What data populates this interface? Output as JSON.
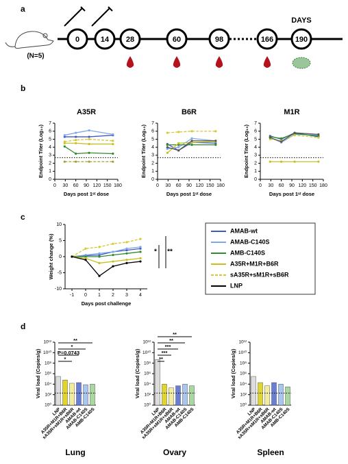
{
  "panel_labels": [
    "a",
    "b",
    "c",
    "d"
  ],
  "timeline": {
    "group": "(N=5)",
    "unit": "DAYS",
    "days": [
      "0",
      "14",
      "28",
      "60",
      "98",
      "166",
      "190"
    ]
  },
  "chart_data": [
    {
      "type": "line",
      "title": "A35R",
      "y_label": "Endpoint Titer (Log₁₀)",
      "x_label": "Days post 1ˢᵗ dose",
      "xlim": [
        0,
        180
      ],
      "xticks": [
        0,
        30,
        60,
        90,
        120,
        150,
        180
      ],
      "ylim": [
        0,
        7
      ],
      "yticks": [
        0,
        1,
        2,
        3,
        4,
        5,
        6,
        7
      ],
      "reference_line": 2.7,
      "x": [
        28,
        60,
        98,
        166
      ],
      "series": [
        {
          "color": "#3f57c6",
          "line_style": "solid",
          "values": [
            5.3,
            5.3,
            5.3,
            5.5
          ]
        },
        {
          "color": "#7fa6e6",
          "line_style": "solid",
          "values": [
            5.5,
            5.8,
            6.1,
            5.6
          ]
        },
        {
          "color": "#2e8b2e",
          "line_style": "solid",
          "values": [
            4.1,
            3.2,
            3.3,
            3.2
          ]
        },
        {
          "color": "#c8c020",
          "line_style": "solid",
          "values": [
            4.5,
            4.5,
            4.4,
            4.4
          ]
        },
        {
          "color": "#d6c832",
          "line_style": "dashed",
          "values": [
            4.7,
            4.9,
            5.0,
            4.8
          ]
        },
        {
          "color": "#a9a030",
          "line_style": "dashed",
          "values": [
            2.2,
            2.2,
            2.2,
            2.2
          ]
        }
      ]
    },
    {
      "type": "line",
      "title": "B6R",
      "y_label": "Endpoint Titer (Log₁₀)",
      "x_label": "Days post 1ˢᵗ dose",
      "xlim": [
        0,
        180
      ],
      "xticks": [
        0,
        30,
        60,
        90,
        120,
        150,
        180
      ],
      "ylim": [
        0,
        7
      ],
      "yticks": [
        0,
        1,
        2,
        3,
        4,
        5,
        6,
        7
      ],
      "reference_line": 2.7,
      "x": [
        28,
        60,
        98,
        166
      ],
      "series": [
        {
          "color": "#3f57c6",
          "line_style": "solid",
          "values": [
            4.4,
            3.6,
            4.6,
            4.5
          ]
        },
        {
          "color": "#7fa6e6",
          "line_style": "solid",
          "values": [
            3.8,
            4.0,
            5.1,
            4.8
          ]
        },
        {
          "color": "#2e8b2e",
          "line_style": "solid",
          "values": [
            4.3,
            4.3,
            4.3,
            4.3
          ]
        },
        {
          "color": "#c8c020",
          "line_style": "solid",
          "values": [
            3.3,
            4.5,
            4.6,
            4.7
          ]
        },
        {
          "color": "#d6c832",
          "line_style": "dashed",
          "values": [
            5.8,
            5.9,
            6.0,
            6.0
          ]
        },
        {
          "color": "#555555",
          "line_style": "solid",
          "values": [
            4.0,
            3.6,
            4.8,
            4.8
          ]
        }
      ]
    },
    {
      "type": "line",
      "title": "M1R",
      "y_label": "Endpoint Titer (Log₁₀)",
      "x_label": "Days post 1ˢᵗ dose",
      "xlim": [
        0,
        180
      ],
      "xticks": [
        0,
        30,
        60,
        90,
        120,
        150,
        180
      ],
      "ylim": [
        0,
        7
      ],
      "yticks": [
        0,
        1,
        2,
        3,
        4,
        5,
        6,
        7
      ],
      "reference_line": 2.7,
      "x": [
        28,
        60,
        98,
        166
      ],
      "series": [
        {
          "color": "#3f57c6",
          "line_style": "solid",
          "values": [
            5.4,
            5.0,
            5.8,
            5.3
          ]
        },
        {
          "color": "#7fa6e6",
          "line_style": "solid",
          "values": [
            5.2,
            4.6,
            5.6,
            5.5
          ]
        },
        {
          "color": "#2e8b2e",
          "line_style": "solid",
          "values": [
            5.3,
            5.1,
            5.7,
            5.4
          ]
        },
        {
          "color": "#c8c020",
          "line_style": "solid",
          "values": [
            2.2,
            2.2,
            2.2,
            2.2
          ]
        },
        {
          "color": "#d6c832",
          "line_style": "dashed",
          "values": [
            5.0,
            4.8,
            5.5,
            5.2
          ]
        },
        {
          "color": "#555555",
          "line_style": "solid",
          "values": [
            5.2,
            4.7,
            5.8,
            5.6
          ]
        }
      ]
    },
    {
      "type": "line",
      "y_label": "Weight change (%)",
      "x_label": "Days post challenge",
      "xlim": [
        -1.5,
        4.5
      ],
      "xticks": [
        -1,
        0,
        1,
        2,
        3,
        4
      ],
      "ylim": [
        -10,
        10
      ],
      "yticks": [
        -10,
        -5,
        0,
        5,
        10
      ],
      "x": [
        -1,
        0,
        1,
        2,
        3,
        4
      ],
      "legend": true,
      "annotations": [
        "*",
        "**"
      ],
      "series": [
        {
          "name": "AMAB-wt",
          "color": "#3f57c6",
          "line_style": "solid",
          "values": [
            0,
            0.3,
            0.5,
            1.5,
            2,
            2.5
          ]
        },
        {
          "name": "AMAB-C140S",
          "color": "#7fa6e6",
          "line_style": "solid",
          "values": [
            0,
            0.5,
            1,
            1.5,
            2.5,
            3
          ]
        },
        {
          "name": "AMB-C140S",
          "color": "#2e8b2e",
          "line_style": "solid",
          "values": [
            0,
            0,
            0,
            0.5,
            1,
            1.5
          ]
        },
        {
          "name": "A35R+M1R+B6R",
          "color": "#c8c020",
          "line_style": "solid",
          "values": [
            0,
            -0.5,
            -2,
            -1.5,
            -1,
            -0.5
          ]
        },
        {
          "name": "sA35R+sM1R+sB6R",
          "color": "#d6c832",
          "line_style": "dashed",
          "values": [
            0,
            2.5,
            3,
            4,
            4.5,
            5.5
          ]
        },
        {
          "name": "LNP",
          "color": "#000000",
          "line_style": "solid",
          "values": [
            0,
            -1,
            -6,
            -3,
            -2,
            -1.5
          ]
        }
      ]
    },
    {
      "type": "bar",
      "title": "Lung",
      "y_label": "Viral load (Copies/g)",
      "log_scale": true,
      "ylim": [
        1,
        1000000000000
      ],
      "yticks": [
        {
          "value": 1,
          "label": "10⁰"
        },
        {
          "value": 100,
          "label": "10²"
        },
        {
          "value": 10000,
          "label": "10⁴"
        },
        {
          "value": 1000000,
          "label": "10⁶"
        },
        {
          "value": 100000000,
          "label": "10⁸"
        },
        {
          "value": 10000000000,
          "label": "10¹⁰"
        },
        {
          "value": 1000000000000,
          "label": "10¹²"
        }
      ],
      "reference_line": 200,
      "categories": [
        "LNP",
        "A35R+M1R+B6R",
        "sA35R+sM1R+sB6R",
        "AMAB-wt",
        "AMAB-C140S",
        "AMB-C140S"
      ],
      "colors": [
        "#dddddd",
        "#e0d52e",
        "#f2eca0",
        "#6a7ed4",
        "#a9c6ee",
        "#a8d8a0"
      ],
      "values": [
        300000,
        60000,
        15000,
        20000,
        8000,
        10000
      ],
      "comparisons": [
        "**",
        "*",
        "P=0.0743",
        "*"
      ]
    },
    {
      "type": "bar",
      "title": "Ovary",
      "y_label": "Viral load (Copies/g)",
      "log_scale": true,
      "ylim": [
        1,
        1000000000000
      ],
      "yticks": [
        {
          "value": 1,
          "label": "10⁰"
        },
        {
          "value": 100,
          "label": "10²"
        },
        {
          "value": 10000,
          "label": "10⁴"
        },
        {
          "value": 1000000,
          "label": "10⁶"
        },
        {
          "value": 100000000,
          "label": "10⁸"
        },
        {
          "value": 10000000000,
          "label": "10¹⁰"
        },
        {
          "value": 1000000000000,
          "label": "10¹²"
        }
      ],
      "reference_line": 200,
      "categories": [
        "LNP",
        "A35R+M1R+B6R",
        "sA35R+sM1R+sB6R",
        "AMAB-wt",
        "AMAB-C140S",
        "AMB-C140S"
      ],
      "colors": [
        "#dddddd",
        "#e0d52e",
        "#f2eca0",
        "#6a7ed4",
        "#a9c6ee",
        "#a8d8a0"
      ],
      "values": [
        500000000,
        10000,
        2000,
        5000,
        10000,
        5000
      ],
      "comparisons": [
        "**",
        "**",
        "***",
        "***",
        "**"
      ]
    },
    {
      "type": "bar",
      "title": "Spleen",
      "y_label": "Viral load (Copies/g)",
      "log_scale": true,
      "ylim": [
        1,
        1000000000000
      ],
      "yticks": [
        {
          "value": 1,
          "label": "10⁰"
        },
        {
          "value": 100,
          "label": "10²"
        },
        {
          "value": 10000,
          "label": "10⁴"
        },
        {
          "value": 1000000,
          "label": "10⁶"
        },
        {
          "value": 100000000,
          "label": "10⁸"
        },
        {
          "value": 10000000000,
          "label": "10¹⁰"
        },
        {
          "value": 1000000000000,
          "label": "10¹²"
        }
      ],
      "reference_line": 200,
      "categories": [
        "LNP",
        "A35R+M1R+B6R",
        "sA35R+sM1R+sB6R",
        "AMAB-wt",
        "AMAB-C140S",
        "AMB-C140S"
      ],
      "colors": [
        "#dddddd",
        "#e0d52e",
        "#f2eca0",
        "#6a7ed4",
        "#a9c6ee",
        "#a8d8a0"
      ],
      "values": [
        300000,
        20000,
        5000,
        20000,
        10000,
        3000
      ],
      "comparisons": []
    }
  ]
}
